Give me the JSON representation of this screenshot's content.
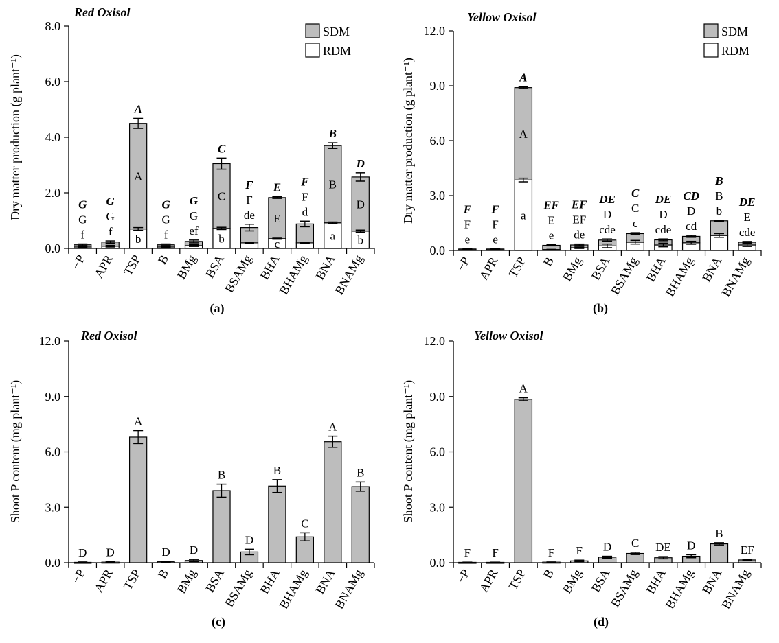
{
  "colors": {
    "sdm": "#bdbdbd",
    "rdm": "#ffffff",
    "bar": "#bdbdbd",
    "stroke": "#000000"
  },
  "legend": {
    "sdm": "SDM",
    "rdm": "RDM"
  },
  "chart_data": [
    {
      "id": "a",
      "type": "bar",
      "stacked": true,
      "title": "Red Oxisol",
      "panel_label": "(a)",
      "ylabel": "Dry matter production (g plant⁻¹)",
      "ylim": [
        0,
        8
      ],
      "yticks": [
        "0.0",
        "2.0",
        "4.0",
        "6.0",
        "8.0"
      ],
      "legend": true,
      "categories": [
        "−P",
        "APR",
        "TSP",
        "B",
        "BMg",
        "BSA",
        "BSAMg",
        "BHA",
        "BHAMg",
        "BNA",
        "BNAMg"
      ],
      "series": [
        {
          "name": "RDM",
          "values": [
            0.05,
            0.08,
            0.7,
            0.05,
            0.1,
            0.72,
            0.2,
            0.35,
            0.2,
            0.92,
            0.62
          ],
          "err": [
            0.02,
            0.03,
            0.05,
            0.02,
            0.03,
            0.04,
            0.02,
            0.02,
            0.02,
            0.03,
            0.04
          ],
          "letters": [
            "f",
            "f",
            "b",
            "f",
            "ef",
            "b",
            "de",
            "c",
            "d",
            "a",
            "b"
          ]
        },
        {
          "name": "SDM",
          "values": [
            0.08,
            0.15,
            3.8,
            0.08,
            0.15,
            2.33,
            0.55,
            1.48,
            0.68,
            2.78,
            1.95
          ],
          "err": [
            0.03,
            0.04,
            0.18,
            0.03,
            0.05,
            0.2,
            0.12,
            0.03,
            0.1,
            0.1,
            0.15
          ],
          "letters": [
            "G",
            "G",
            "A",
            "G",
            "G",
            "C",
            "F",
            "E",
            "F",
            "B",
            "D"
          ],
          "total_letters": [
            "G",
            "G",
            "A",
            "G",
            "G",
            "C",
            "F",
            "E",
            "F",
            "B",
            "D"
          ]
        }
      ],
      "inner_letter_index": [
        2,
        5,
        7,
        9,
        10
      ]
    },
    {
      "id": "b",
      "type": "bar",
      "stacked": true,
      "title": "Yellow Oxisol",
      "panel_label": "(b)",
      "ylabel": "Dry matter production (g plant⁻¹)",
      "ylim": [
        0,
        12
      ],
      "yticks": [
        "0.0",
        "3.0",
        "6.0",
        "9.0",
        "12.0"
      ],
      "legend": true,
      "categories": [
        "−P",
        "APR",
        "TSP",
        "B",
        "BMg",
        "BSA",
        "BSAMg",
        "BHA",
        "BHAMg",
        "BNA",
        "BNAMg"
      ],
      "series": [
        {
          "name": "RDM",
          "values": [
            0.03,
            0.03,
            3.85,
            0.05,
            0.15,
            0.25,
            0.45,
            0.3,
            0.42,
            0.82,
            0.3
          ],
          "err": [
            0.01,
            0.01,
            0.1,
            0.01,
            0.04,
            0.1,
            0.1,
            0.1,
            0.08,
            0.1,
            0.08
          ],
          "letters": [
            "e",
            "e",
            "a",
            "e",
            "de",
            "cde",
            "c",
            "cde",
            "cd",
            "b",
            "cde"
          ]
        },
        {
          "name": "SDM",
          "values": [
            0.05,
            0.05,
            5.05,
            0.23,
            0.15,
            0.32,
            0.47,
            0.28,
            0.35,
            0.8,
            0.15
          ],
          "err": [
            0.02,
            0.02,
            0.05,
            0.03,
            0.05,
            0.06,
            0.05,
            0.05,
            0.05,
            0.03,
            0.04
          ],
          "letters": [
            "F",
            "F",
            "A",
            "E",
            "EF",
            "D",
            "C",
            "D",
            "D",
            "B",
            "E"
          ],
          "total_letters": [
            "F",
            "F",
            "A",
            "EF",
            "EF",
            "DE",
            "C",
            "DE",
            "CD",
            "B",
            "DE"
          ]
        }
      ],
      "inner_letter_index": [
        2
      ]
    },
    {
      "id": "c",
      "type": "bar",
      "stacked": false,
      "title": "Red Oxisol",
      "panel_label": "(c)",
      "ylabel": "Shoot P content (mg plant⁻¹)",
      "ylim": [
        0,
        12
      ],
      "yticks": [
        "0.0",
        "3.0",
        "6.0",
        "9.0",
        "12.0"
      ],
      "legend": false,
      "categories": [
        "−P",
        "APR",
        "TSP",
        "B",
        "BMg",
        "BSA",
        "BSAMg",
        "BHA",
        "BHAMg",
        "BNA",
        "BNAMg"
      ],
      "series": [
        {
          "name": "Shoot P",
          "values": [
            0.02,
            0.03,
            6.8,
            0.05,
            0.12,
            3.9,
            0.58,
            4.15,
            1.4,
            6.55,
            4.12
          ],
          "err": [
            0.02,
            0.02,
            0.35,
            0.02,
            0.06,
            0.35,
            0.15,
            0.35,
            0.22,
            0.3,
            0.25
          ],
          "letters": [
            "D",
            "D",
            "A",
            "D",
            "D",
            "B",
            "D",
            "B",
            "C",
            "A",
            "B"
          ]
        }
      ]
    },
    {
      "id": "d",
      "type": "bar",
      "stacked": false,
      "title": "Yellow Oxisol",
      "panel_label": "(d)",
      "ylabel": "Shoot P content (mg plant⁻¹)",
      "ylim": [
        0,
        12
      ],
      "yticks": [
        "0.0",
        "3.0",
        "6.0",
        "9.0",
        "12.0"
      ],
      "legend": false,
      "categories": [
        "−P",
        "APR",
        "TSP",
        "B",
        "BMg",
        "BSA",
        "BSAMg",
        "BHA",
        "BHAMg",
        "BNA",
        "BNAMg"
      ],
      "series": [
        {
          "name": "Shoot P",
          "values": [
            0.02,
            0.02,
            8.85,
            0.03,
            0.1,
            0.3,
            0.5,
            0.27,
            0.35,
            1.02,
            0.15
          ],
          "err": [
            0.01,
            0.01,
            0.08,
            0.01,
            0.04,
            0.05,
            0.06,
            0.06,
            0.08,
            0.06,
            0.04
          ],
          "letters": [
            "F",
            "F",
            "A",
            "F",
            "F",
            "D",
            "C",
            "DE",
            "D",
            "B",
            "EF"
          ]
        }
      ]
    }
  ]
}
